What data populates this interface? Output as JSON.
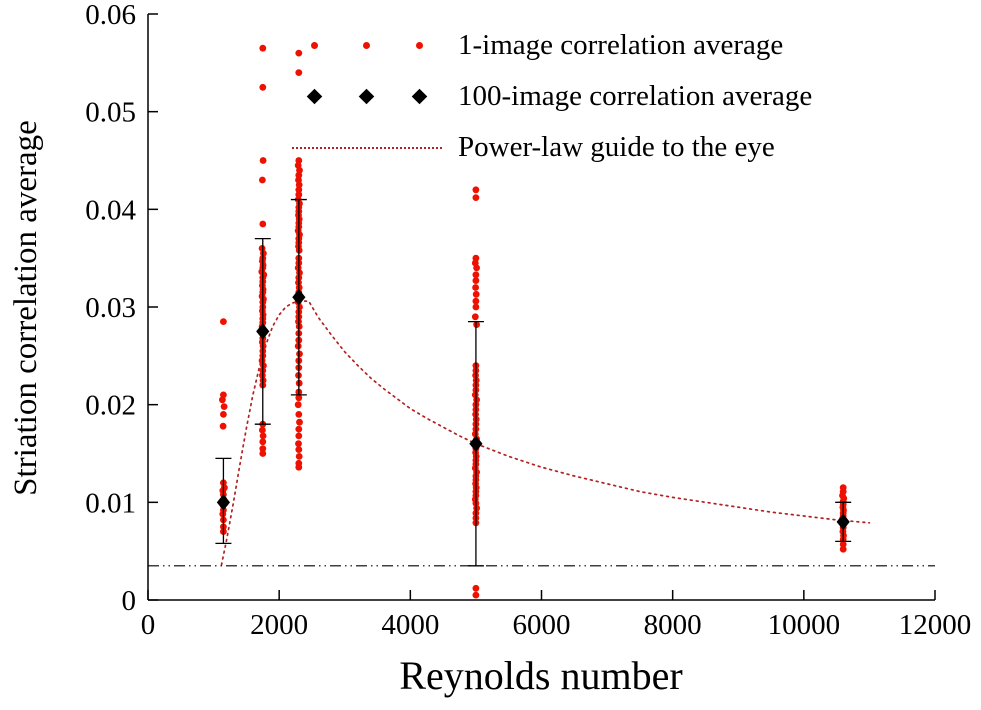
{
  "chart_data": {
    "type": "scatter",
    "title": "",
    "xlabel": "Reynolds number",
    "ylabel": "Striation correlation average",
    "xlim": [
      0,
      12000
    ],
    "ylim": [
      0,
      0.06
    ],
    "grid": false,
    "legend_position": "top-center-inside",
    "x_ticks": [
      0,
      2000,
      4000,
      6000,
      8000,
      10000,
      12000
    ],
    "x_tick_labels": [
      "0",
      "2000",
      "4000",
      "6000",
      "8000",
      "10000",
      "12000"
    ],
    "y_ticks": [
      0,
      0.01,
      0.02,
      0.03,
      0.04,
      0.05,
      0.06
    ],
    "y_tick_labels": [
      "0",
      "0.01",
      "0.02",
      "0.03",
      "0.04",
      "0.05",
      "0.06"
    ],
    "colors": {
      "scatter_red": "#ee1100",
      "diamond_black": "#000000",
      "guide_red": "#b22222",
      "baseline_black": "#000000"
    },
    "legend": [
      {
        "label": "1-image correlation average",
        "marker": "red-dot",
        "color": "#ee1100"
      },
      {
        "label": "100-image correlation average",
        "marker": "black-diamond",
        "color": "#000000"
      },
      {
        "label": "Power-law guide to the eye",
        "marker": "dotted-line",
        "color": "#b22222"
      }
    ],
    "baseline": {
      "y": 0.0035,
      "style": "dash-dot-dot",
      "color": "#000000"
    },
    "series": [
      {
        "name": "1-image correlation average",
        "type": "scatter",
        "marker": "dot",
        "color": "#ee1100",
        "points": [
          [
            1150,
            0.0285
          ],
          [
            1150,
            0.021
          ],
          [
            1135,
            0.0205
          ],
          [
            1160,
            0.0198
          ],
          [
            1150,
            0.019
          ],
          [
            1145,
            0.0178
          ],
          [
            1150,
            0.012
          ],
          [
            1165,
            0.0115
          ],
          [
            1140,
            0.0112
          ],
          [
            1150,
            0.0108
          ],
          [
            1155,
            0.0103
          ],
          [
            1150,
            0.01
          ],
          [
            1145,
            0.0097
          ],
          [
            1150,
            0.0092
          ],
          [
            1140,
            0.0088
          ],
          [
            1150,
            0.0082
          ],
          [
            1150,
            0.0075
          ],
          [
            1150,
            0.007
          ],
          [
            1750,
            0.0565
          ],
          [
            1750,
            0.0525
          ],
          [
            1755,
            0.045
          ],
          [
            1745,
            0.043
          ],
          [
            1750,
            0.0385
          ],
          [
            1740,
            0.036
          ],
          [
            1760,
            0.0355
          ],
          [
            1750,
            0.035
          ],
          [
            1745,
            0.0347
          ],
          [
            1755,
            0.0343
          ],
          [
            1750,
            0.034
          ],
          [
            1735,
            0.0336
          ],
          [
            1765,
            0.0333
          ],
          [
            1750,
            0.033
          ],
          [
            1750,
            0.0326
          ],
          [
            1745,
            0.0322
          ],
          [
            1755,
            0.0318
          ],
          [
            1750,
            0.0315
          ],
          [
            1740,
            0.0311
          ],
          [
            1760,
            0.0308
          ],
          [
            1750,
            0.0305
          ],
          [
            1750,
            0.03
          ],
          [
            1745,
            0.0296
          ],
          [
            1755,
            0.0292
          ],
          [
            1750,
            0.0288
          ],
          [
            1750,
            0.0284
          ],
          [
            1740,
            0.028
          ],
          [
            1760,
            0.0276
          ],
          [
            1750,
            0.0272
          ],
          [
            1750,
            0.0268
          ],
          [
            1745,
            0.0264
          ],
          [
            1755,
            0.026
          ],
          [
            1750,
            0.0255
          ],
          [
            1750,
            0.025
          ],
          [
            1740,
            0.0245
          ],
          [
            1760,
            0.024
          ],
          [
            1750,
            0.0235
          ],
          [
            1745,
            0.023
          ],
          [
            1755,
            0.0225
          ],
          [
            1750,
            0.022
          ],
          [
            1750,
            0.018
          ],
          [
            1745,
            0.0174
          ],
          [
            1755,
            0.0168
          ],
          [
            1750,
            0.0162
          ],
          [
            1750,
            0.0155
          ],
          [
            1750,
            0.015
          ],
          [
            2300,
            0.056
          ],
          [
            2300,
            0.054
          ],
          [
            2300,
            0.045
          ],
          [
            2290,
            0.0445
          ],
          [
            2310,
            0.044
          ],
          [
            2300,
            0.0435
          ],
          [
            2295,
            0.043
          ],
          [
            2305,
            0.0425
          ],
          [
            2300,
            0.042
          ],
          [
            2300,
            0.0415
          ],
          [
            2290,
            0.041
          ],
          [
            2310,
            0.0406
          ],
          [
            2300,
            0.0402
          ],
          [
            2300,
            0.0398
          ],
          [
            2295,
            0.0394
          ],
          [
            2305,
            0.039
          ],
          [
            2300,
            0.0386
          ],
          [
            2300,
            0.0382
          ],
          [
            2290,
            0.0378
          ],
          [
            2310,
            0.0374
          ],
          [
            2300,
            0.037
          ],
          [
            2300,
            0.0366
          ],
          [
            2295,
            0.0362
          ],
          [
            2305,
            0.0358
          ],
          [
            2300,
            0.035
          ],
          [
            2300,
            0.0345
          ],
          [
            2290,
            0.034
          ],
          [
            2310,
            0.0335
          ],
          [
            2300,
            0.033
          ],
          [
            2295,
            0.0325
          ],
          [
            2305,
            0.032
          ],
          [
            2300,
            0.0315
          ],
          [
            2300,
            0.031
          ],
          [
            2290,
            0.0305
          ],
          [
            2310,
            0.03
          ],
          [
            2300,
            0.0295
          ],
          [
            2300,
            0.029
          ],
          [
            2295,
            0.0285
          ],
          [
            2305,
            0.028
          ],
          [
            2300,
            0.0273
          ],
          [
            2300,
            0.0266
          ],
          [
            2290,
            0.026
          ],
          [
            2310,
            0.0252
          ],
          [
            2300,
            0.0245
          ],
          [
            2300,
            0.0238
          ],
          [
            2295,
            0.023
          ],
          [
            2305,
            0.0222
          ],
          [
            2300,
            0.0213
          ],
          [
            2300,
            0.0207
          ],
          [
            2290,
            0.02
          ],
          [
            2300,
            0.019
          ],
          [
            2310,
            0.0182
          ],
          [
            2300,
            0.0175
          ],
          [
            2300,
            0.0168
          ],
          [
            2295,
            0.016
          ],
          [
            2300,
            0.0154
          ],
          [
            2305,
            0.0147
          ],
          [
            2300,
            0.014
          ],
          [
            2300,
            0.0136
          ],
          [
            5000,
            0.042
          ],
          [
            5000,
            0.0412
          ],
          [
            5000,
            0.035
          ],
          [
            4990,
            0.0345
          ],
          [
            5010,
            0.034
          ],
          [
            5000,
            0.0333
          ],
          [
            5000,
            0.0327
          ],
          [
            4995,
            0.032
          ],
          [
            5005,
            0.0313
          ],
          [
            5000,
            0.0306
          ],
          [
            5000,
            0.03
          ],
          [
            4990,
            0.029
          ],
          [
            5010,
            0.0282
          ],
          [
            5000,
            0.024
          ],
          [
            5000,
            0.0235
          ],
          [
            4995,
            0.023
          ],
          [
            5005,
            0.0225
          ],
          [
            5000,
            0.022
          ],
          [
            5000,
            0.0215
          ],
          [
            4990,
            0.021
          ],
          [
            5010,
            0.0205
          ],
          [
            5000,
            0.02
          ],
          [
            5000,
            0.0195
          ],
          [
            4995,
            0.019
          ],
          [
            5005,
            0.0185
          ],
          [
            5000,
            0.018
          ],
          [
            5000,
            0.0175
          ],
          [
            4990,
            0.017
          ],
          [
            5010,
            0.0165
          ],
          [
            5000,
            0.016
          ],
          [
            5000,
            0.0155
          ],
          [
            4995,
            0.0151
          ],
          [
            5005,
            0.0147
          ],
          [
            5000,
            0.0143
          ],
          [
            5000,
            0.0139
          ],
          [
            4990,
            0.0135
          ],
          [
            5010,
            0.0131
          ],
          [
            5000,
            0.0127
          ],
          [
            5000,
            0.0123
          ],
          [
            4995,
            0.0119
          ],
          [
            5005,
            0.0115
          ],
          [
            5000,
            0.0111
          ],
          [
            5000,
            0.0107
          ],
          [
            4990,
            0.0103
          ],
          [
            5000,
            0.0099
          ],
          [
            5010,
            0.0094
          ],
          [
            5000,
            0.0089
          ],
          [
            5000,
            0.0084
          ],
          [
            5000,
            0.0079
          ],
          [
            5000,
            0.0012
          ],
          [
            5000,
            0.0005
          ],
          [
            10600,
            0.0115
          ],
          [
            10600,
            0.0111
          ],
          [
            10590,
            0.0107
          ],
          [
            10610,
            0.0104
          ],
          [
            10600,
            0.0101
          ],
          [
            10600,
            0.0098
          ],
          [
            10595,
            0.0095
          ],
          [
            10605,
            0.0092
          ],
          [
            10600,
            0.0089
          ],
          [
            10600,
            0.0086
          ],
          [
            10590,
            0.0083
          ],
          [
            10610,
            0.008
          ],
          [
            10600,
            0.0077
          ],
          [
            10600,
            0.0074
          ],
          [
            10595,
            0.007
          ],
          [
            10605,
            0.0066
          ],
          [
            10600,
            0.0062
          ],
          [
            10600,
            0.0057
          ],
          [
            10600,
            0.0052
          ]
        ]
      },
      {
        "name": "100-image correlation average",
        "type": "scatter-errorbar",
        "marker": "diamond",
        "color": "#000000",
        "points": [
          {
            "x": 1150,
            "y": 0.01,
            "lo": 0.0058,
            "hi": 0.0145
          },
          {
            "x": 1750,
            "y": 0.0275,
            "lo": 0.018,
            "hi": 0.037
          },
          {
            "x": 2300,
            "y": 0.031,
            "lo": 0.021,
            "hi": 0.041
          },
          {
            "x": 5000,
            "y": 0.016,
            "lo": 0.0035,
            "hi": 0.0285
          },
          {
            "x": 10600,
            "y": 0.008,
            "lo": 0.006,
            "hi": 0.01
          }
        ]
      },
      {
        "name": "Power-law guide to the eye",
        "type": "line",
        "style": "dotted",
        "color": "#b22222",
        "points": [
          [
            1120,
            0.0036
          ],
          [
            1200,
            0.0062
          ],
          [
            1300,
            0.0099
          ],
          [
            1400,
            0.0138
          ],
          [
            1500,
            0.0176
          ],
          [
            1600,
            0.021
          ],
          [
            1700,
            0.0239
          ],
          [
            1800,
            0.0262
          ],
          [
            1900,
            0.028
          ],
          [
            2000,
            0.0292
          ],
          [
            2100,
            0.03
          ],
          [
            2200,
            0.0304
          ],
          [
            2300,
            0.0306
          ],
          [
            2450,
            0.0306
          ],
          [
            2600,
            0.0289
          ],
          [
            2800,
            0.0271
          ],
          [
            3000,
            0.0254
          ],
          [
            3200,
            0.024
          ],
          [
            3400,
            0.0227
          ],
          [
            3600,
            0.0216
          ],
          [
            3800,
            0.0206
          ],
          [
            4000,
            0.0196
          ],
          [
            4250,
            0.0186
          ],
          [
            4500,
            0.0177
          ],
          [
            4750,
            0.0168
          ],
          [
            5000,
            0.016
          ],
          [
            5500,
            0.0147
          ],
          [
            6000,
            0.0136
          ],
          [
            6500,
            0.0127
          ],
          [
            7000,
            0.0119
          ],
          [
            7500,
            0.0111
          ],
          [
            8000,
            0.0105
          ],
          [
            8500,
            0.01
          ],
          [
            9000,
            0.0095
          ],
          [
            9500,
            0.009
          ],
          [
            10000,
            0.0086
          ],
          [
            10500,
            0.0082
          ],
          [
            11000,
            0.0079
          ]
        ]
      }
    ]
  }
}
